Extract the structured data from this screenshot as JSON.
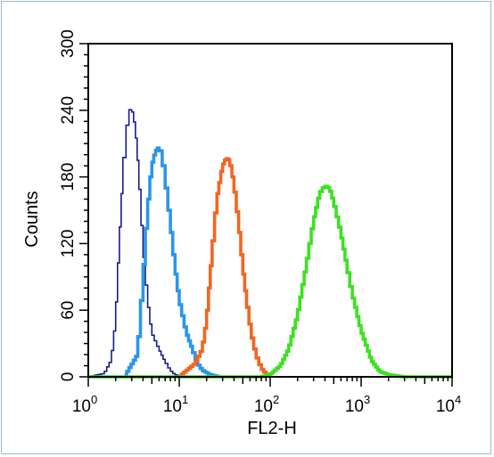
{
  "chart_data": {
    "type": "line",
    "title": "",
    "xlabel": "FL2-H",
    "ylabel": "Counts",
    "x_scale": "log",
    "xlim": [
      1,
      10000
    ],
    "ylim": [
      0,
      300
    ],
    "grid": false,
    "legend": "none",
    "x_ticks": [
      {
        "value": 1,
        "base": "10",
        "exp": "0"
      },
      {
        "value": 10,
        "base": "10",
        "exp": "1"
      },
      {
        "value": 100,
        "base": "10",
        "exp": "2"
      },
      {
        "value": 1000,
        "base": "10",
        "exp": "3"
      },
      {
        "value": 10000,
        "base": "10",
        "exp": "4"
      }
    ],
    "y_ticks": [
      "0",
      "60",
      "120",
      "180",
      "240",
      "300"
    ],
    "series": [
      {
        "color": "#1a1a8c",
        "stroke": "thin",
        "x": [
          1.0,
          1.5,
          1.8,
          2.0,
          2.2,
          2.4,
          2.6,
          2.8,
          3.0,
          3.3,
          3.6,
          4.0,
          4.5,
          5.0,
          6.0,
          7.0,
          8.0,
          9.0,
          10.0,
          11.0
        ],
        "y": [
          0,
          3,
          15,
          50,
          120,
          180,
          215,
          238,
          243,
          225,
          185,
          120,
          70,
          40,
          25,
          14,
          6,
          2,
          1,
          0
        ]
      },
      {
        "color": "#2b96e8",
        "stroke": "thick",
        "x": [
          2.5,
          3.5,
          4.0,
          4.5,
          5.0,
          5.5,
          6.0,
          6.5,
          7.0,
          8.0,
          9.0,
          10.0,
          12.0,
          14.0,
          16.0,
          18.0,
          22.0,
          28.0
        ],
        "y": [
          0,
          20,
          85,
          150,
          190,
          203,
          207,
          200,
          180,
          140,
          100,
          70,
          40,
          25,
          12,
          6,
          2,
          0
        ]
      },
      {
        "color": "#f26522",
        "stroke": "thick",
        "x": [
          10,
          15,
          18,
          20,
          23,
          26,
          30,
          33,
          36,
          40,
          45,
          50,
          55,
          62,
          70,
          80,
          90,
          100
        ],
        "y": [
          0,
          12,
          25,
          50,
          110,
          160,
          190,
          197,
          195,
          175,
          140,
          100,
          70,
          40,
          20,
          8,
          3,
          0
        ]
      },
      {
        "color": "#3ee022",
        "stroke": "thick",
        "x": [
          1,
          80,
          100,
          130,
          160,
          200,
          250,
          300,
          350,
          400,
          450,
          500,
          600,
          700,
          800,
          1000,
          1300,
          1600,
          2000,
          2500,
          3000,
          10000
        ],
        "y": [
          0,
          0,
          2,
          10,
          25,
          55,
          100,
          140,
          165,
          172,
          170,
          158,
          130,
          100,
          75,
          42,
          15,
          5,
          2,
          1,
          0,
          0
        ]
      }
    ]
  }
}
